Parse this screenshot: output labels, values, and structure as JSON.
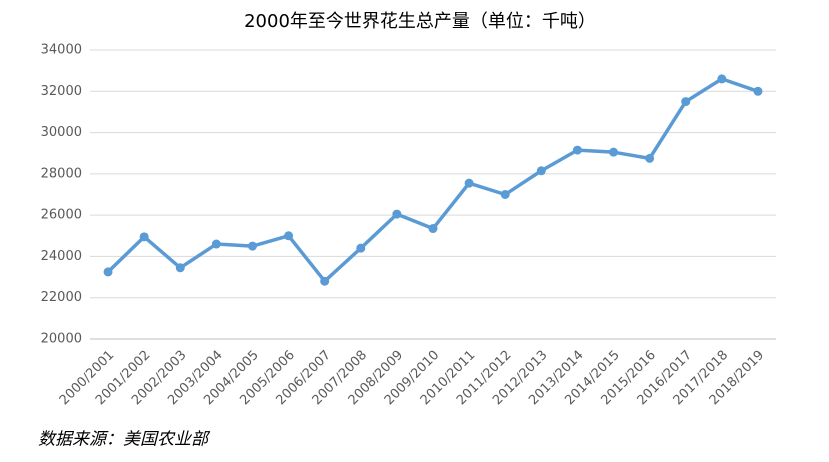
{
  "chart_data": {
    "type": "line",
    "title": "2000年至今世界花生总产量（单位：千吨）",
    "categories": [
      "2000/2001",
      "2001/2002",
      "2002/2003",
      "2003/2004",
      "2004/2005",
      "2005/2006",
      "2006/2007",
      "2007/2008",
      "2008/2009",
      "2009/2010",
      "2010/2011",
      "2011/2012",
      "2012/2013",
      "2013/2014",
      "2014/2015",
      "2015/2016",
      "2016/2017",
      "2017/2018",
      "2018/2019"
    ],
    "series": [
      {
        "name": "世界花生总产量",
        "color": "#5b9bd5",
        "values": [
          23250,
          24950,
          23450,
          24600,
          24500,
          25000,
          22800,
          24400,
          26050,
          25350,
          27550,
          27000,
          28150,
          29150,
          29050,
          28750,
          31500,
          32600,
          32000
        ]
      }
    ],
    "ylim": [
      20000,
      34000
    ],
    "yticks": [
      20000,
      22000,
      24000,
      26000,
      28000,
      30000,
      32000,
      34000
    ],
    "grid": true,
    "source": "数据来源：美国农业部"
  }
}
